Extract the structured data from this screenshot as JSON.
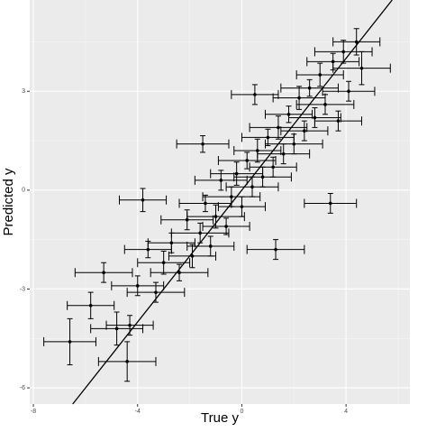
{
  "chart_data": {
    "type": "errorbar-scatter",
    "xlabel": "True y",
    "ylabel": "Predicted y",
    "x": [
      -6.6,
      -5.8,
      -5.3,
      -4.8,
      -4.3,
      -4.4,
      -4.0,
      -3.6,
      -3.3,
      -3.0,
      -2.7,
      -2.4,
      -2.1,
      -1.9,
      -1.6,
      -1.4,
      -1.2,
      -1.0,
      -0.8,
      -0.6,
      -0.4,
      -0.2,
      0.0,
      0.2,
      0.4,
      0.6,
      0.8,
      1.0,
      1.2,
      1.4,
      1.6,
      1.8,
      2.0,
      2.2,
      2.4,
      2.6,
      2.8,
      3.0,
      3.2,
      3.5,
      3.7,
      3.9,
      4.1,
      4.4,
      4.6,
      3.4,
      -3.8,
      1.3,
      -1.5,
      0.5
    ],
    "y": [
      -4.6,
      -3.5,
      -2.5,
      -4.2,
      -4.1,
      -5.2,
      -2.9,
      -1.8,
      -3.1,
      -2.2,
      -1.6,
      -2.5,
      -0.9,
      -2.0,
      -1.3,
      -0.4,
      -1.7,
      -0.8,
      0.3,
      -1.1,
      -0.2,
      0.5,
      -0.5,
      0.9,
      0.1,
      1.2,
      0.4,
      1.6,
      0.7,
      1.9,
      1.1,
      2.3,
      1.4,
      2.8,
      1.8,
      3.1,
      2.2,
      3.5,
      2.6,
      3.9,
      2.1,
      4.2,
      3.0,
      4.5,
      3.7,
      -0.4,
      -0.3,
      -1.8,
      1.4,
      2.9
    ],
    "xerr": [
      1.0,
      0.9,
      1.1,
      1.0,
      0.9,
      1.1,
      1.0,
      0.9,
      1.1,
      1.0,
      0.9,
      1.1,
      1.0,
      0.9,
      1.1,
      1.0,
      0.9,
      1.1,
      1.0,
      0.9,
      1.1,
      1.0,
      0.9,
      1.1,
      1.0,
      0.9,
      1.1,
      1.0,
      0.9,
      1.1,
      1.0,
      0.9,
      1.1,
      1.0,
      0.9,
      1.1,
      1.0,
      0.9,
      1.1,
      1.0,
      0.9,
      1.1,
      1.0,
      0.9,
      1.1,
      1.0,
      0.9,
      1.1,
      1.0,
      0.9
    ],
    "yerr": [
      0.7,
      0.4,
      0.3,
      0.5,
      0.3,
      0.6,
      0.3,
      0.25,
      0.3,
      0.35,
      0.3,
      0.25,
      0.3,
      0.35,
      0.3,
      0.25,
      0.3,
      0.35,
      0.3,
      0.25,
      0.3,
      0.35,
      0.3,
      0.25,
      0.3,
      0.35,
      0.3,
      0.25,
      0.3,
      0.35,
      0.3,
      0.25,
      0.3,
      0.35,
      0.3,
      0.25,
      0.3,
      0.35,
      0.3,
      0.25,
      0.3,
      0.35,
      0.3,
      0.4,
      0.5,
      0.3,
      0.35,
      0.3,
      0.25,
      0.3
    ],
    "color": "#000000",
    "xlim": [
      -8.14,
      6.45
    ],
    "ylim": [
      -6.49,
      5.77
    ],
    "xticks": [
      -8,
      -4,
      0,
      4
    ],
    "yticks": [
      -6,
      -3,
      0,
      3
    ],
    "reference_line": {
      "slope": 1,
      "intercept": 0
    },
    "grid": true
  }
}
